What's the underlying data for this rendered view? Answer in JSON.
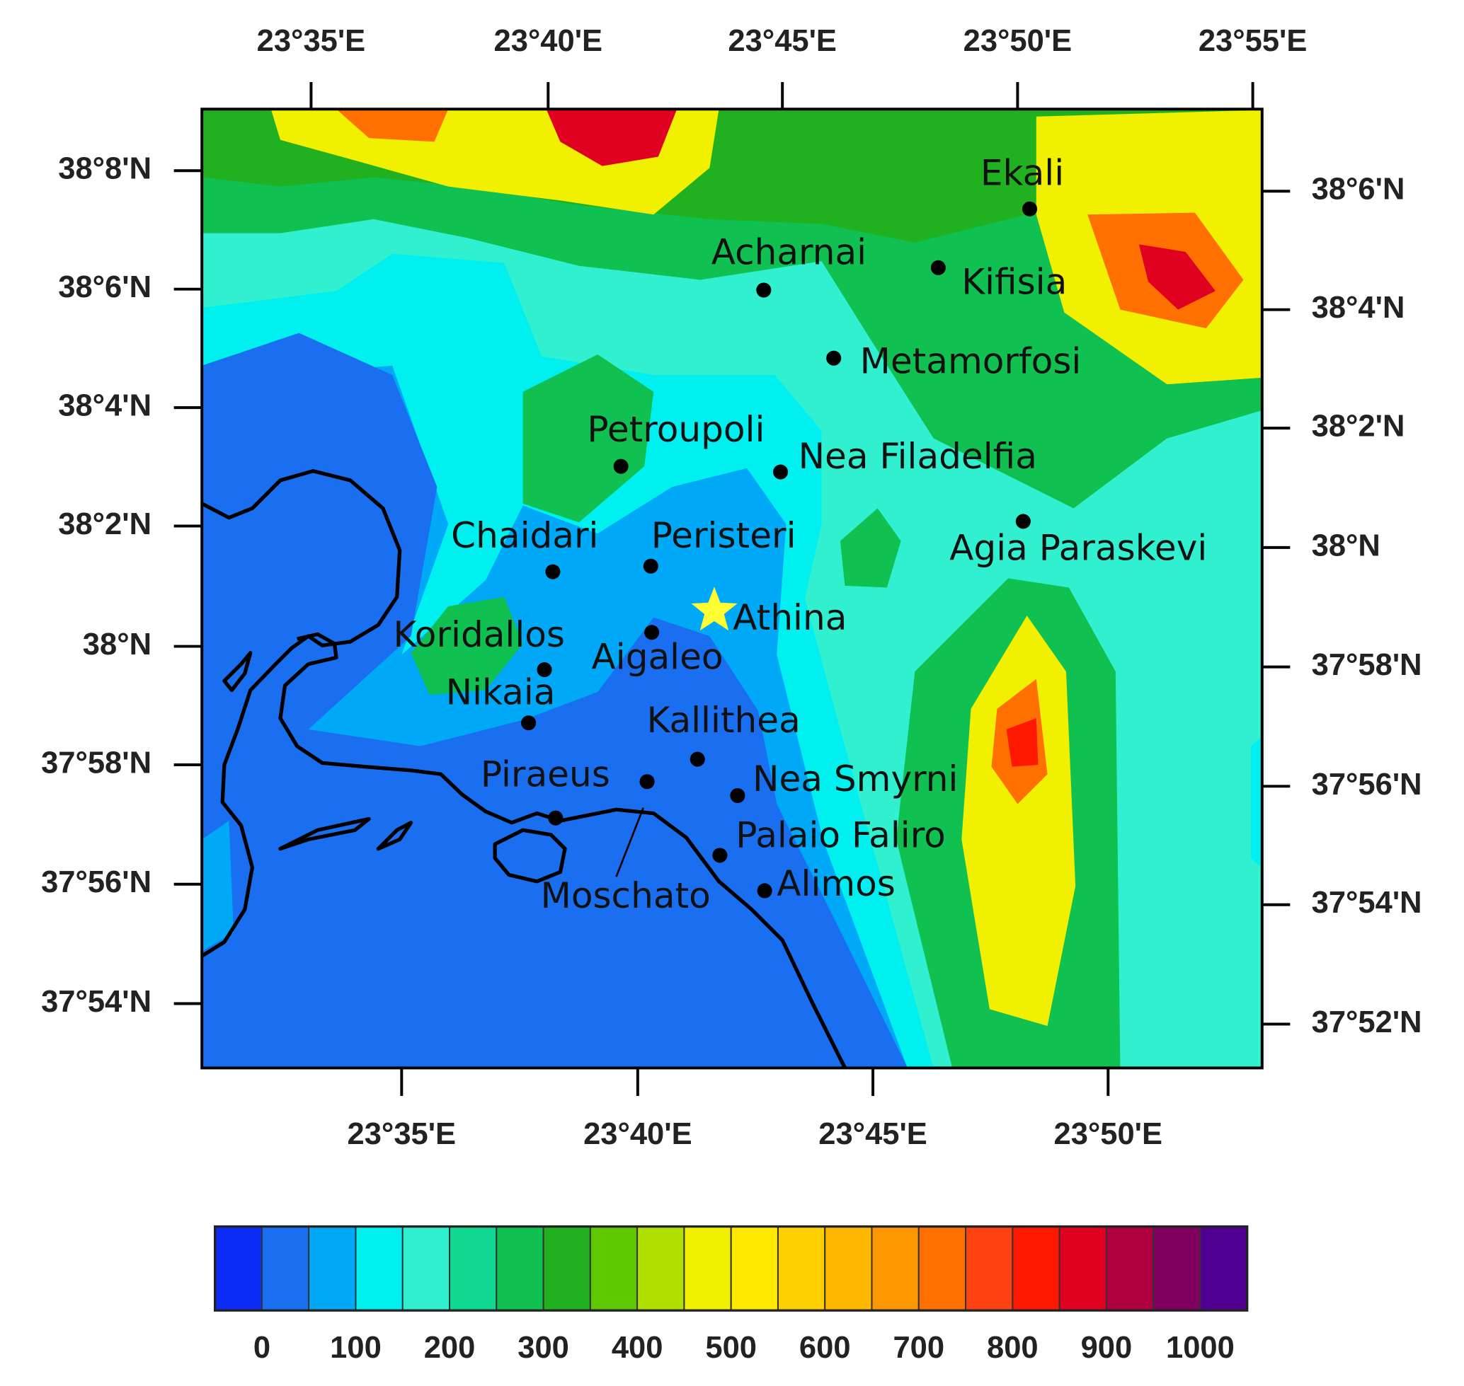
{
  "map": {
    "top_axis": [
      "23°35'E",
      "23°40'E",
      "23°45'E",
      "23°50'E",
      "23°55'E"
    ],
    "bottom_axis": [
      "23°35'E",
      "23°40'E",
      "23°45'E",
      "23°50'E"
    ],
    "left_axis": [
      "38°8'N",
      "38°6'N",
      "38°4'N",
      "38°2'N",
      "38°N",
      "37°58'N",
      "37°56'N",
      "37°54'N"
    ],
    "right_axis": [
      "38°6'N",
      "38°4'N",
      "38°2'N",
      "38°N",
      "37°58'N",
      "37°56'N",
      "37°54'N",
      "37°52'N"
    ],
    "places": [
      "Ekali",
      "Acharnai",
      "Kifisia",
      "Metamorfosi",
      "Petroupoli",
      "Nea Filadelfia",
      "Agia Paraskevi",
      "Chaidari",
      "Peristeri",
      "Athina",
      "Koridallos",
      "Aigaleo",
      "Nikaia",
      "Kallithea",
      "Piraeus",
      "Moschato",
      "Nea Smyrni",
      "Palaio Faliro",
      "Alimos"
    ],
    "colorbar": {
      "colors": [
        "#0b2cf5",
        "#1a6ef0",
        "#00a8f8",
        "#00f0f0",
        "#30f0d0",
        "#10d890",
        "#10c050",
        "#20b020",
        "#60c800",
        "#b0e000",
        "#f0f000",
        "#ffe800",
        "#ffd000",
        "#ffb800",
        "#ff9800",
        "#ff7000",
        "#ff4010",
        "#ff1800",
        "#e00020",
        "#b00040",
        "#800060",
        "#500090"
      ],
      "ticks": [
        0,
        100,
        200,
        300,
        400,
        500,
        600,
        700,
        800,
        900,
        1000
      ]
    }
  }
}
